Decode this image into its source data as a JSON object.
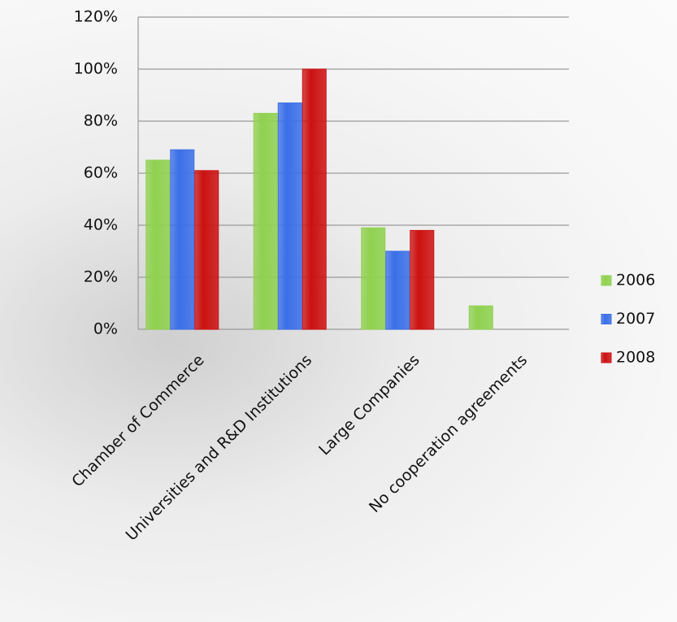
{
  "chart_data": {
    "type": "bar",
    "categories": [
      "Chamber of Commerce",
      "Universities and R&D Institutions",
      "Large Companies",
      "No cooperation agreements"
    ],
    "series": [
      {
        "name": "2006",
        "color": "#8fd14f",
        "values": [
          65,
          83,
          39,
          9
        ]
      },
      {
        "name": "2007",
        "color": "#3b6fe8",
        "values": [
          69,
          87,
          30,
          null
        ]
      },
      {
        "name": "2008",
        "color": "#cc1111",
        "values": [
          61,
          100,
          38,
          null
        ]
      }
    ],
    "ylim": [
      0,
      120
    ],
    "yticks": [
      {
        "value": 0,
        "label": "0%"
      },
      {
        "value": 20,
        "label": "20%"
      },
      {
        "value": 40,
        "label": "40%"
      },
      {
        "value": 60,
        "label": "60%"
      },
      {
        "value": 80,
        "label": "80%"
      },
      {
        "value": 100,
        "label": "100%"
      },
      {
        "value": 120,
        "label": "120%"
      }
    ],
    "grid": true,
    "legend": "right"
  }
}
